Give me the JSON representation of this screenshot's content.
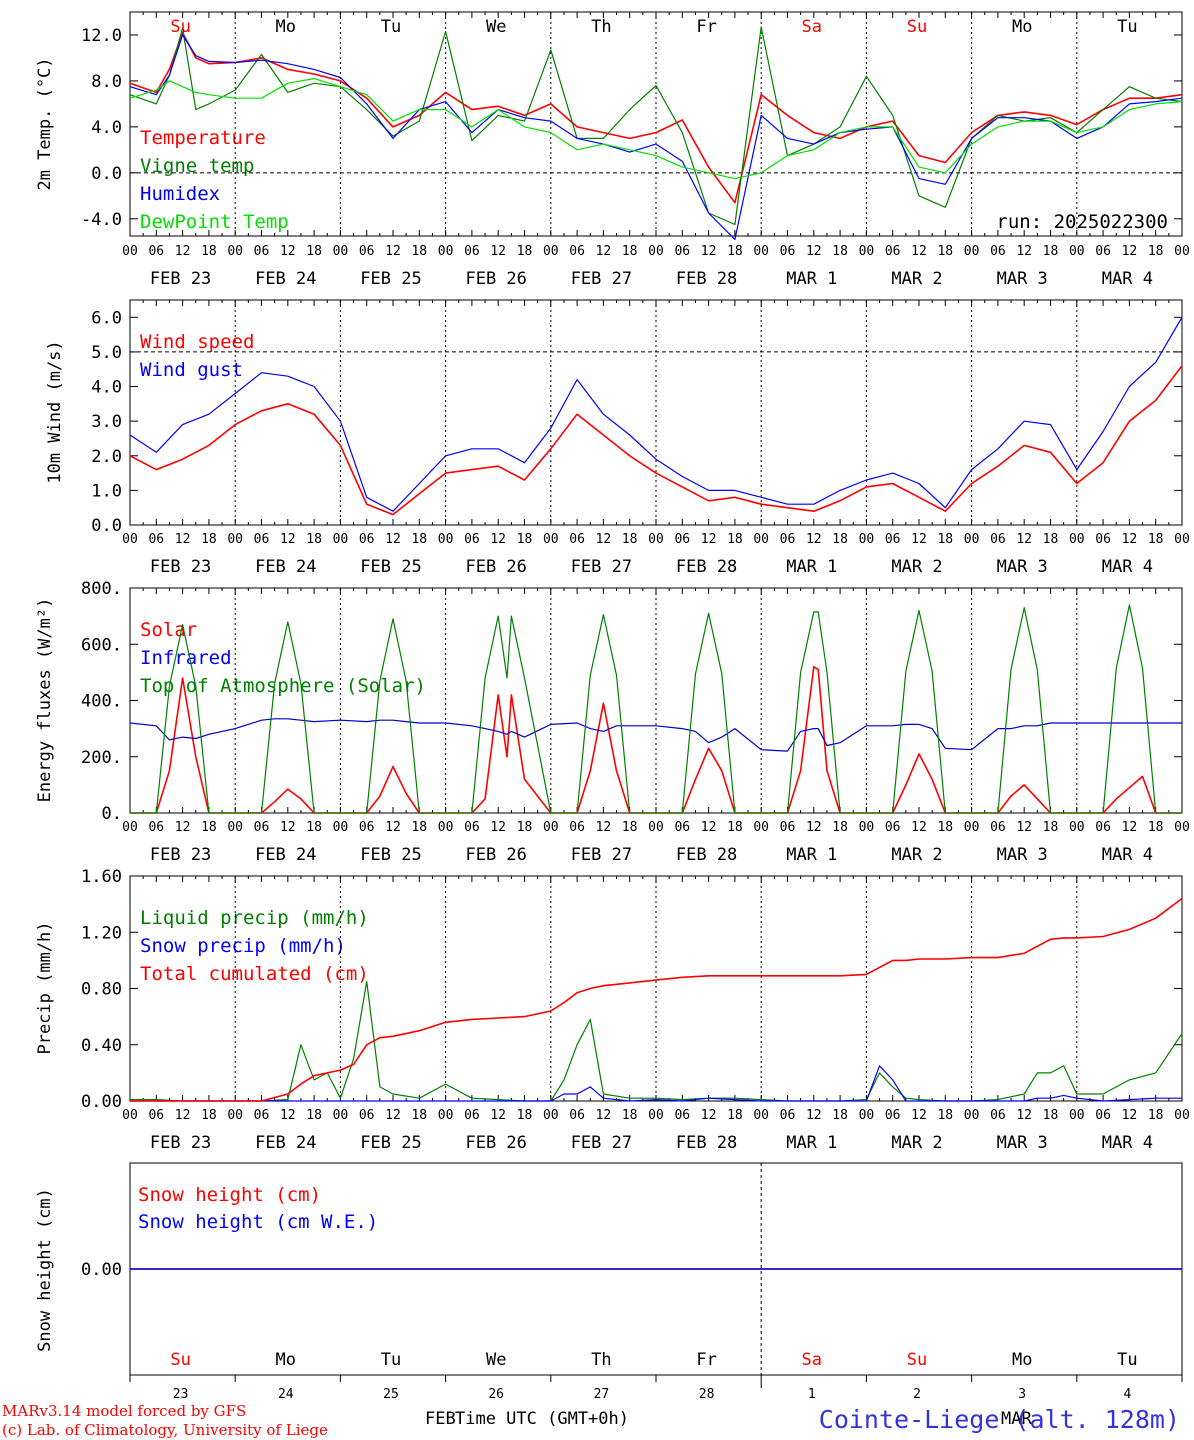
{
  "colors": {
    "red": "#ff0000",
    "green": "#008000",
    "blue": "#0000ff",
    "lightgreen": "#00e000",
    "darkblue": "#0000cc",
    "black": "#000000",
    "station": "#3333dd"
  },
  "x_axis": {
    "tick_hours": [
      "00",
      "06",
      "12",
      "18"
    ],
    "final_tick": "00",
    "dates": [
      "FEB 23",
      "FEB 24",
      "FEB 25",
      "FEB 26",
      "FEB 27",
      "FEB 28",
      "MAR  1",
      "MAR  2",
      "MAR  3",
      "MAR  4"
    ],
    "days": [
      {
        "label": "Su",
        "weekend": true
      },
      {
        "label": "Mo",
        "weekend": false
      },
      {
        "label": "Tu",
        "weekend": false
      },
      {
        "label": "We",
        "weekend": false
      },
      {
        "label": "Th",
        "weekend": false
      },
      {
        "label": "Fr",
        "weekend": false
      },
      {
        "label": "Sa",
        "weekend": true
      },
      {
        "label": "Su",
        "weekend": true
      },
      {
        "label": "Mo",
        "weekend": false
      },
      {
        "label": "Tu",
        "weekend": false
      }
    ],
    "day_numbers": [
      "23",
      "24",
      "25",
      "26",
      "27",
      "28",
      "1",
      "2",
      "3",
      "4"
    ],
    "month_left": "FEB",
    "month_right": "MAR",
    "title": "Time UTC (GMT+0h)"
  },
  "footer": {
    "credit1": "MARv3.14 model forced by GFS",
    "credit2": "(c) Lab. of Climatology, University of Liege",
    "station": "Cointe-Liege (alt. 128m)"
  },
  "chart_data": [
    {
      "type": "line",
      "ylabel": "2m Temp. (°C)",
      "ylim": [
        -5.5,
        14.0
      ],
      "yticks": [
        "12.0",
        "8.0",
        "4.0",
        "0.0",
        "-4.0"
      ],
      "ytick_values": [
        12,
        8,
        4,
        0,
        -4
      ],
      "ref_line": 0,
      "annotation": "run: 2025022300",
      "x_hours": [
        0,
        6,
        9,
        12,
        15,
        18,
        24,
        30,
        36,
        42,
        48,
        54,
        60,
        66,
        72,
        78,
        84,
        90,
        96,
        102,
        108,
        114,
        120,
        126,
        132,
        138,
        144,
        150,
        156,
        162,
        168,
        174,
        180,
        186,
        192,
        198,
        204,
        210,
        216,
        222,
        228,
        234,
        240
      ],
      "series": [
        {
          "name": "Temperature",
          "color": "red",
          "values": [
            7.8,
            7.0,
            9.0,
            12.2,
            10.0,
            9.5,
            9.6,
            10.0,
            9.0,
            8.6,
            8.0,
            6.5,
            4.0,
            5.0,
            7.0,
            5.5,
            5.8,
            5.0,
            6.0,
            4.0,
            3.5,
            3.0,
            3.5,
            4.6,
            0.5,
            -2.6,
            6.8,
            5.0,
            3.5,
            3.0,
            4.0,
            4.5,
            1.5,
            0.9,
            3.5,
            5.0,
            5.3,
            5.0,
            4.2,
            5.5,
            6.5,
            6.5,
            6.8
          ]
        },
        {
          "name": "Vigne temp",
          "color": "green",
          "values": [
            6.8,
            6.0,
            8.5,
            12.6,
            5.5,
            6.0,
            7.2,
            10.3,
            7.0,
            7.8,
            7.5,
            5.5,
            3.2,
            4.5,
            12.3,
            2.8,
            5.0,
            4.5,
            10.7,
            3.0,
            3.0,
            5.5,
            7.6,
            3.5,
            -3.5,
            -4.5,
            12.7,
            1.5,
            2.5,
            4.0,
            8.4,
            5.0,
            -2.0,
            -3.0,
            3.0,
            5.0,
            4.5,
            4.8,
            3.5,
            5.5,
            7.5,
            6.5,
            6.2
          ]
        },
        {
          "name": "Humidex",
          "color": "blue",
          "values": [
            7.5,
            6.8,
            8.5,
            12.0,
            10.2,
            9.7,
            9.6,
            9.8,
            9.5,
            9.0,
            8.3,
            6.0,
            3.0,
            5.5,
            6.2,
            3.5,
            5.5,
            4.8,
            4.5,
            3.0,
            2.5,
            1.8,
            2.5,
            1.0,
            -3.5,
            -5.8,
            5.0,
            3.0,
            2.5,
            3.5,
            3.8,
            4.0,
            -0.5,
            -1.0,
            3.0,
            4.8,
            4.8,
            4.5,
            3.0,
            4.0,
            6.0,
            6.2,
            6.5
          ]
        },
        {
          "name": "DewPoint Temp",
          "color": "lightgreen",
          "values": [
            6.5,
            7.2,
            8.0,
            7.5,
            7.0,
            6.8,
            6.5,
            6.5,
            7.8,
            8.2,
            7.5,
            6.8,
            4.5,
            5.5,
            5.5,
            4.0,
            5.5,
            4.0,
            3.5,
            2.0,
            2.5,
            2.0,
            1.5,
            0.5,
            0.0,
            -0.5,
            0.0,
            1.5,
            2.0,
            3.5,
            4.0,
            4.0,
            0.5,
            0.0,
            2.5,
            4.0,
            4.5,
            4.5,
            3.5,
            4.0,
            5.5,
            6.0,
            6.2
          ]
        }
      ]
    },
    {
      "type": "line",
      "ylabel": "10m Wind (m/s)",
      "ylim": [
        0,
        6.5
      ],
      "yticks": [
        "6.0",
        "5.0",
        "4.0",
        "3.0",
        "2.0",
        "1.0",
        "0.0"
      ],
      "ytick_values": [
        6,
        5,
        4,
        3,
        2,
        1,
        0
      ],
      "ref_line": 5,
      "x_hours": [
        0,
        6,
        12,
        18,
        24,
        30,
        36,
        42,
        48,
        54,
        60,
        66,
        72,
        78,
        84,
        90,
        96,
        102,
        108,
        114,
        120,
        126,
        132,
        138,
        144,
        150,
        156,
        162,
        168,
        174,
        180,
        186,
        192,
        198,
        204,
        210,
        216,
        222,
        228,
        234,
        240
      ],
      "series": [
        {
          "name": "Wind speed",
          "color": "red",
          "values": [
            2.0,
            1.6,
            1.9,
            2.3,
            2.9,
            3.3,
            3.5,
            3.2,
            2.3,
            0.6,
            0.3,
            0.9,
            1.5,
            1.6,
            1.7,
            1.3,
            2.2,
            3.2,
            2.6,
            2.0,
            1.5,
            1.1,
            0.7,
            0.8,
            0.6,
            0.5,
            0.4,
            0.7,
            1.1,
            1.2,
            0.8,
            0.4,
            1.2,
            1.7,
            2.3,
            2.1,
            1.2,
            1.8,
            3.0,
            3.6,
            4.6
          ]
        },
        {
          "name": "Wind gust",
          "color": "blue",
          "values": [
            2.6,
            2.1,
            2.9,
            3.2,
            3.8,
            4.4,
            4.3,
            4.0,
            3.0,
            0.8,
            0.4,
            1.2,
            2.0,
            2.2,
            2.2,
            1.8,
            2.8,
            4.2,
            3.2,
            2.6,
            1.9,
            1.4,
            1.0,
            1.0,
            0.8,
            0.6,
            0.6,
            1.0,
            1.3,
            1.5,
            1.2,
            0.5,
            1.6,
            2.2,
            3.0,
            2.9,
            1.6,
            2.7,
            4.0,
            4.7,
            6.0
          ]
        }
      ]
    },
    {
      "type": "line",
      "ylabel": "Energy fluxes (W/m²)",
      "ylim": [
        0,
        800
      ],
      "yticks": [
        "800.",
        "600.",
        "400.",
        "200.",
        "0."
      ],
      "ytick_values": [
        800,
        600,
        400,
        200,
        0
      ],
      "x_hours": [
        0,
        6,
        9,
        12,
        15,
        18,
        24,
        30,
        33,
        36,
        39,
        42,
        48,
        54,
        57,
        60,
        63,
        66,
        72,
        78,
        81,
        84,
        86,
        87,
        90,
        96,
        102,
        105,
        108,
        111,
        114,
        120,
        126,
        129,
        132,
        135,
        138,
        144,
        150,
        153,
        156,
        157,
        159,
        162,
        168,
        174,
        177,
        180,
        183,
        186,
        192,
        198,
        201,
        204,
        207,
        210,
        216,
        222,
        225,
        228,
        231,
        234,
        240
      ],
      "series": [
        {
          "name": "Solar",
          "color": "red",
          "values": [
            0,
            0,
            150,
            480,
            200,
            0,
            0,
            0,
            40,
            85,
            50,
            0,
            0,
            0,
            60,
            165,
            70,
            0,
            0,
            0,
            50,
            420,
            200,
            420,
            120,
            0,
            0,
            150,
            390,
            150,
            0,
            0,
            0,
            120,
            230,
            150,
            0,
            0,
            0,
            150,
            520,
            510,
            150,
            0,
            0,
            0,
            100,
            210,
            120,
            0,
            0,
            0,
            60,
            100,
            50,
            0,
            0,
            0,
            50,
            90,
            130,
            0,
            0
          ]
        },
        {
          "name": "Infrared",
          "color": "darkblue",
          "values": [
            320,
            310,
            260,
            270,
            265,
            280,
            300,
            330,
            335,
            335,
            330,
            325,
            330,
            325,
            330,
            330,
            325,
            320,
            320,
            310,
            300,
            290,
            280,
            290,
            270,
            315,
            320,
            300,
            290,
            310,
            310,
            310,
            300,
            290,
            250,
            270,
            300,
            225,
            220,
            290,
            300,
            300,
            240,
            250,
            310,
            310,
            315,
            315,
            300,
            230,
            225,
            300,
            300,
            310,
            310,
            320,
            320,
            320,
            320,
            320,
            320,
            320,
            320
          ]
        },
        {
          "name": "Top of Atmosphere (Solar)",
          "color": "green",
          "values": [
            0,
            0,
            450,
            670,
            450,
            0,
            0,
            0,
            460,
            680,
            460,
            0,
            0,
            0,
            470,
            690,
            470,
            0,
            0,
            0,
            480,
            700,
            480,
            700,
            480,
            0,
            0,
            490,
            705,
            490,
            0,
            0,
            0,
            495,
            710,
            495,
            0,
            0,
            0,
            500,
            715,
            715,
            500,
            0,
            0,
            0,
            505,
            720,
            505,
            0,
            0,
            0,
            510,
            730,
            510,
            0,
            0,
            0,
            515,
            740,
            515,
            0,
            0
          ]
        }
      ]
    },
    {
      "type": "line",
      "ylabel": "Precip (mm/h)",
      "ylim": [
        0,
        1.6
      ],
      "yticks": [
        "1.60",
        "1.20",
        "0.80",
        "0.40",
        "0.00"
      ],
      "ytick_values": [
        1.6,
        1.2,
        0.8,
        0.4,
        0.0
      ],
      "x_hours": [
        0,
        6,
        12,
        18,
        24,
        30,
        36,
        39,
        42,
        45,
        48,
        51,
        54,
        57,
        60,
        66,
        72,
        78,
        84,
        90,
        96,
        99,
        102,
        105,
        108,
        114,
        120,
        126,
        132,
        138,
        144,
        150,
        156,
        162,
        168,
        171,
        174,
        177,
        180,
        186,
        192,
        198,
        204,
        207,
        210,
        213,
        216,
        222,
        228,
        234,
        240
      ],
      "series": [
        {
          "name": "Liquid precip (mm/h)",
          "color": "green",
          "values": [
            0.01,
            0.01,
            0.0,
            0.0,
            0.0,
            0.0,
            0.01,
            0.4,
            0.15,
            0.2,
            0.02,
            0.3,
            0.85,
            0.1,
            0.05,
            0.02,
            0.12,
            0.02,
            0.01,
            0.0,
            0.0,
            0.15,
            0.4,
            0.58,
            0.05,
            0.02,
            0.02,
            0.01,
            0.02,
            0.02,
            0.01,
            0.0,
            0.0,
            0.0,
            0.01,
            0.2,
            0.1,
            0.02,
            0.01,
            0.0,
            0.0,
            0.01,
            0.05,
            0.2,
            0.2,
            0.25,
            0.05,
            0.05,
            0.15,
            0.2,
            0.48
          ]
        },
        {
          "name": "Snow precip (mm/h)",
          "color": "blue",
          "values": [
            0,
            0,
            0,
            0,
            0,
            0,
            0,
            0,
            0,
            0,
            0,
            0,
            0,
            0,
            0,
            0,
            0,
            0,
            0,
            0,
            0,
            0.05,
            0.05,
            0.1,
            0.02,
            0,
            0.01,
            0,
            0.02,
            0.01,
            0,
            0,
            0,
            0,
            0,
            0.25,
            0.15,
            0,
            0,
            0,
            0,
            0,
            0,
            0.02,
            0.02,
            0.04,
            0.02,
            0,
            0.01,
            0.02,
            0.02
          ]
        },
        {
          "name": "Total cumulated (cm)",
          "color": "red",
          "values": [
            0,
            0,
            0,
            0,
            0,
            0,
            0.05,
            0.12,
            0.18,
            0.2,
            0.22,
            0.26,
            0.4,
            0.45,
            0.46,
            0.5,
            0.56,
            0.58,
            0.59,
            0.6,
            0.64,
            0.7,
            0.77,
            0.8,
            0.82,
            0.84,
            0.86,
            0.88,
            0.89,
            0.89,
            0.89,
            0.89,
            0.89,
            0.89,
            0.9,
            0.95,
            1.0,
            1.0,
            1.01,
            1.01,
            1.02,
            1.02,
            1.05,
            1.1,
            1.15,
            1.16,
            1.16,
            1.17,
            1.22,
            1.3,
            1.44
          ]
        }
      ]
    },
    {
      "type": "line",
      "ylabel": "Snow height (cm)",
      "ylim": [
        -1,
        1
      ],
      "yticks": [
        "0.00"
      ],
      "ytick_values": [
        0
      ],
      "x_hours": [
        0,
        240
      ],
      "series": [
        {
          "name": "Snow height (cm)",
          "color": "red",
          "values": [
            0,
            0
          ]
        },
        {
          "name": "Snow height (cm W.E.)",
          "color": "blue",
          "values": [
            0,
            0
          ]
        }
      ]
    }
  ]
}
